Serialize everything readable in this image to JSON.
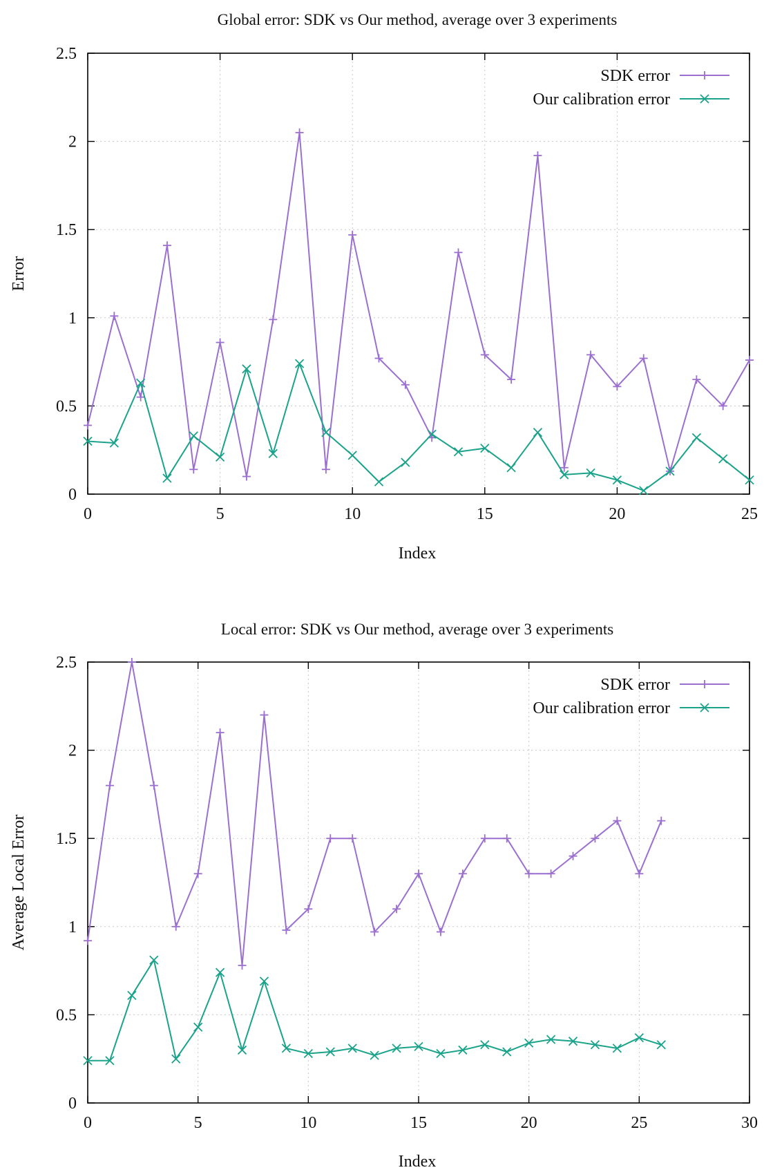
{
  "colors": {
    "sdk": "#9b6fcf",
    "ours": "#1aa38a"
  },
  "chart_data": [
    {
      "type": "line",
      "title": "Global error: SDK vs Our method, average over 3 experiments",
      "xlabel": "Index",
      "ylabel": "Error",
      "xlim": [
        0,
        25
      ],
      "ylim": [
        0,
        2.5
      ],
      "xticks": [
        "0",
        "5",
        "10",
        "15",
        "20",
        "25"
      ],
      "yticks": [
        "0",
        "0.5",
        "1",
        "1.5",
        "2",
        "2.5"
      ],
      "grid": true,
      "legend_position": "top-right",
      "x": [
        0,
        1,
        2,
        3,
        4,
        5,
        6,
        7,
        8,
        9,
        10,
        11,
        12,
        13,
        14,
        15,
        16,
        17,
        18,
        19,
        20,
        21,
        22,
        23,
        24,
        25
      ],
      "series": [
        {
          "name": "SDK error",
          "marker": "plus",
          "values": [
            0.39,
            1.01,
            0.55,
            1.41,
            0.14,
            0.86,
            0.1,
            0.99,
            2.05,
            0.14,
            1.47,
            0.77,
            0.62,
            0.32,
            1.37,
            0.79,
            0.65,
            1.92,
            0.15,
            0.79,
            0.61,
            0.77,
            0.13,
            0.65,
            0.5,
            0.76
          ]
        },
        {
          "name": "Our calibration error",
          "marker": "cross",
          "values": [
            0.3,
            0.29,
            0.63,
            0.09,
            0.33,
            0.21,
            0.71,
            0.23,
            0.74,
            0.35,
            0.22,
            0.07,
            0.18,
            0.34,
            0.24,
            0.26,
            0.15,
            0.35,
            0.11,
            0.12,
            0.08,
            0.02,
            0.13,
            0.32,
            0.2,
            0.08
          ]
        }
      ]
    },
    {
      "type": "line",
      "title": "Local error: SDK vs Our method, average over 3 experiments",
      "xlabel": "Index",
      "ylabel": "Average Local Error",
      "xlim": [
        0,
        30
      ],
      "ylim": [
        0,
        2.5
      ],
      "xticks": [
        "0",
        "5",
        "10",
        "15",
        "20",
        "25",
        "30"
      ],
      "yticks": [
        "0",
        "0.5",
        "1",
        "1.5",
        "2",
        "2.5"
      ],
      "grid": true,
      "legend_position": "top-right",
      "x": [
        0,
        1,
        2,
        3,
        4,
        5,
        6,
        7,
        8,
        9,
        10,
        11,
        12,
        13,
        14,
        15,
        16,
        17,
        18,
        19,
        20,
        21,
        22,
        23,
        24,
        25,
        26
      ],
      "series": [
        {
          "name": "SDK error",
          "marker": "plus",
          "values": [
            0.92,
            1.8,
            2.5,
            1.8,
            1.0,
            1.3,
            2.1,
            0.78,
            2.2,
            0.98,
            1.1,
            1.5,
            1.5,
            0.97,
            1.1,
            1.3,
            0.97,
            1.3,
            1.5,
            1.5,
            1.3,
            1.3,
            1.4,
            1.5,
            1.6,
            1.3,
            1.6
          ]
        },
        {
          "name": "Our calibration error",
          "marker": "cross",
          "values": [
            0.24,
            0.24,
            0.61,
            0.81,
            0.25,
            0.43,
            0.74,
            0.3,
            0.69,
            0.31,
            0.28,
            0.29,
            0.31,
            0.27,
            0.31,
            0.32,
            0.28,
            0.3,
            0.33,
            0.29,
            0.34,
            0.36,
            0.35,
            0.33,
            0.31,
            0.37,
            0.33
          ]
        }
      ]
    }
  ]
}
